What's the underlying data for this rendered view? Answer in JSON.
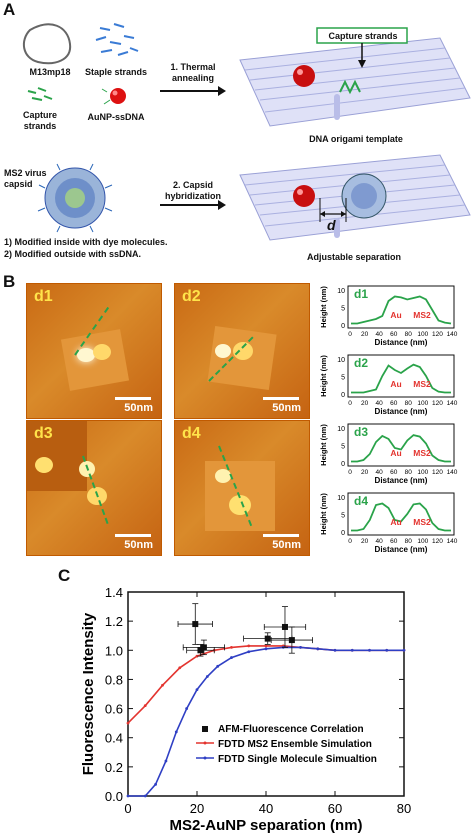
{
  "panel_a": {
    "letter": "A",
    "m13": "M13mp18",
    "staple": "Staple strands",
    "capture": "Capture\nstrands",
    "aunp": "AuNP-ssDNA",
    "step1_line1": "1. Thermal",
    "step1_line2": "annealing",
    "capture_box": "Capture strands",
    "template_caption": "DNA origami template",
    "ms2_line1": "MS2 virus",
    "ms2_line2": "capsid",
    "step2_line1": "2. Capsid",
    "step2_line2": "hybridization",
    "d_label": "d",
    "mod1": "1)  Modified inside with dye molecules.",
    "mod2": "2)  Modified outside with ssDNA.",
    "adjustable": "Adjustable separation"
  },
  "panel_b": {
    "letter": "B",
    "images": [
      {
        "tag": "d1",
        "scale": "50nm"
      },
      {
        "tag": "d2",
        "scale": "50nm"
      },
      {
        "tag": "d3",
        "scale": "50nm"
      },
      {
        "tag": "d4",
        "scale": "50nm"
      }
    ],
    "profiles": [
      {
        "tag": "d1",
        "au": "Au",
        "ms2": "MS2",
        "xlabel": "Distance (nm)",
        "ylabel": "Height (nm)"
      },
      {
        "tag": "d2",
        "au": "Au",
        "ms2": "MS2",
        "xlabel": "Distance (nm)",
        "ylabel": "Height (nm)"
      },
      {
        "tag": "d3",
        "au": "Au",
        "ms2": "MS2",
        "xlabel": "Distance (nm)",
        "ylabel": "Height (nm)"
      },
      {
        "tag": "d4",
        "au": "Au",
        "ms2": "MS2",
        "xlabel": "Distance (nm)",
        "ylabel": "Height (nm)"
      }
    ],
    "profile_xticks": [
      "0",
      "20",
      "40",
      "60",
      "80",
      "100",
      "120",
      "140"
    ],
    "profile_yticks": [
      "0",
      "5",
      "10"
    ]
  },
  "panel_c": {
    "letter": "C"
  },
  "chart_data": {
    "type": "scatter",
    "xlabel": "MS2-AuNP separation (nm)",
    "ylabel": "Fluorescence Intensity",
    "xlim": [
      0,
      80
    ],
    "ylim": [
      0.0,
      1.4
    ],
    "xticks": [
      "0",
      "20",
      "40",
      "60",
      "80"
    ],
    "yticks": [
      "0.0",
      "0.2",
      "0.4",
      "0.6",
      "0.8",
      "1.0",
      "1.2",
      "1.4"
    ],
    "legend_position": "bottom-right",
    "series": [
      {
        "name": "AFM-Fluorescence Correlation",
        "color": "#111111",
        "x": [
          19.5,
          21,
          22,
          40.5,
          45.5,
          47.5
        ],
        "y": [
          1.18,
          1.0,
          1.02,
          1.08,
          1.16,
          1.07
        ],
        "xerr": [
          5,
          4,
          6,
          7,
          6,
          6
        ],
        "yerr": [
          0.14,
          0.04,
          0.05,
          0.04,
          0.14,
          0.09
        ]
      },
      {
        "name": "FDTD MS2 Ensemble Simulation",
        "color": "#e3342f",
        "x": [
          0,
          5,
          10,
          15,
          20,
          25,
          30,
          35,
          40,
          45,
          50,
          55,
          60,
          65,
          70,
          75,
          80
        ],
        "y": [
          0.5,
          0.62,
          0.76,
          0.88,
          0.96,
          1.0,
          1.02,
          1.03,
          1.03,
          1.03,
          1.02,
          1.01,
          1.0,
          1.0,
          1.0,
          1.0,
          1.0
        ]
      },
      {
        "name": "FDTD Single Molecule Simualtion",
        "color": "#2f3fc4",
        "x": [
          0,
          5,
          8,
          11,
          14,
          17,
          20,
          23,
          26,
          30,
          35,
          40,
          45,
          50,
          55,
          60,
          65,
          70,
          75,
          80
        ],
        "y": [
          0.0,
          0.0,
          0.08,
          0.24,
          0.44,
          0.6,
          0.73,
          0.82,
          0.89,
          0.95,
          0.99,
          1.01,
          1.02,
          1.02,
          1.01,
          1.0,
          1.0,
          1.0,
          1.0,
          1.0
        ]
      }
    ]
  }
}
